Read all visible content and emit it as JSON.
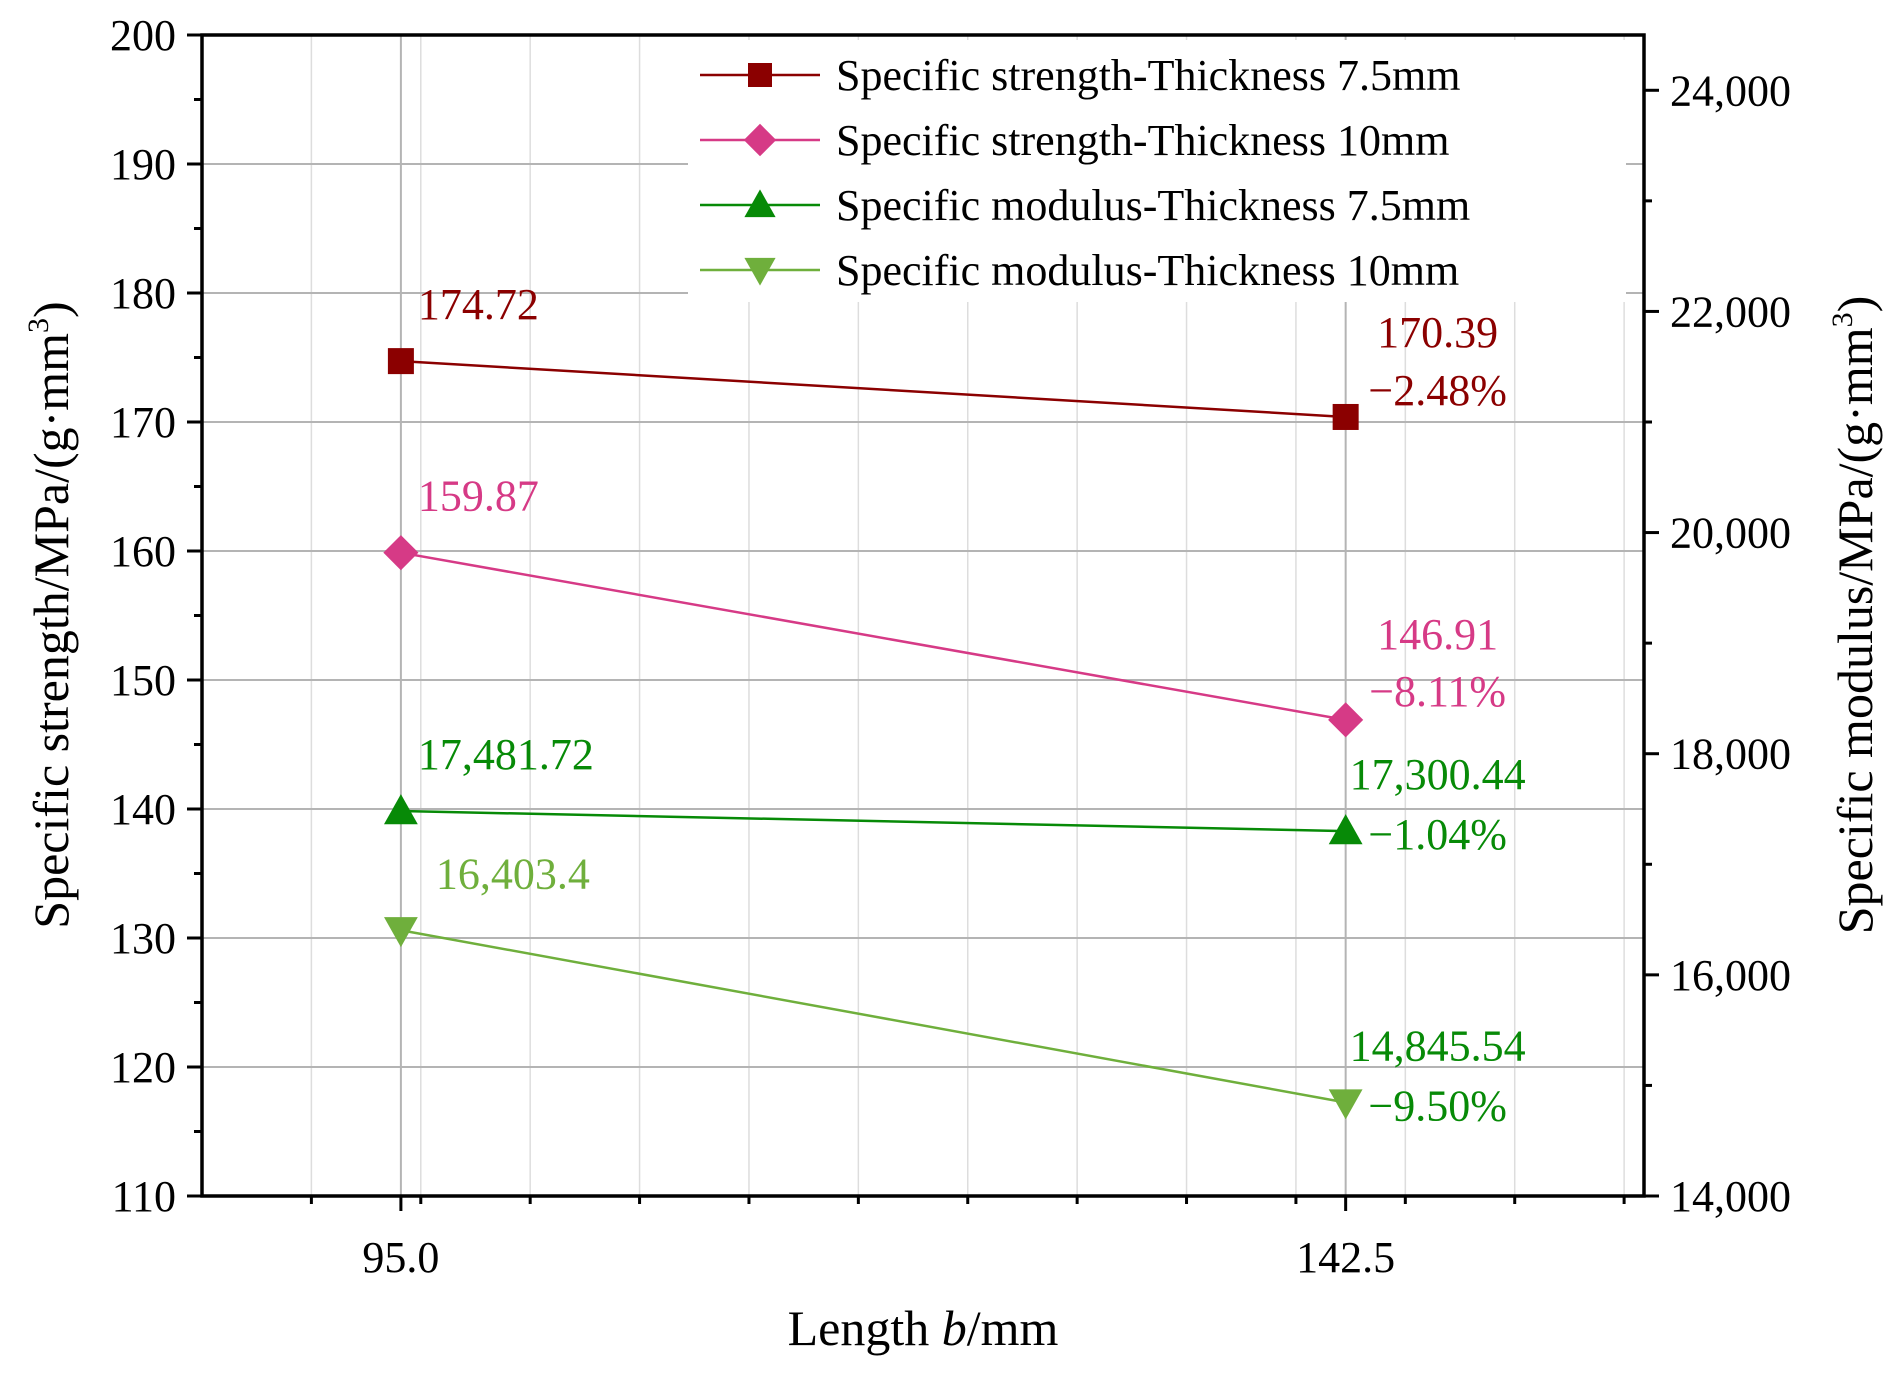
{
  "chart_data": {
    "type": "line",
    "x_ticks": [
      "95.0",
      "142.5"
    ],
    "x": [
      95.0,
      142.5
    ],
    "xlim": [
      85.0,
      157.5
    ],
    "xlabel_pre": "Length ",
    "xlabel_var": "b",
    "xlabel_post": "/mm",
    "ylabel_left": "Specific strength/MPa/(g·mm",
    "ylabel_right": "Specific modulus/MPa/(g·mm",
    "ylabel_sup": "3",
    "ylabel_close": ")",
    "ylim_left": [
      110,
      200
    ],
    "ylim_right": [
      14000,
      24500
    ],
    "yticks_left": [
      "110",
      "120",
      "130",
      "140",
      "150",
      "160",
      "170",
      "180",
      "190",
      "200"
    ],
    "yticks_right": [
      "14,000",
      "16,000",
      "18,000",
      "20,000",
      "22,000",
      "24,000"
    ],
    "series": [
      {
        "name": "Specific strength-Thickness 7.5mm",
        "axis": "left",
        "marker": "square",
        "color": "#8B0000",
        "values": [
          174.72,
          170.39
        ],
        "labels": [
          "174.72",
          "170.39"
        ],
        "change": "−2.48%"
      },
      {
        "name": "Specific strength-Thickness 10mm",
        "axis": "left",
        "marker": "diamond",
        "color": "#D63A86",
        "values": [
          159.87,
          146.91
        ],
        "labels": [
          "159.87",
          "146.91"
        ],
        "change": "−8.11%"
      },
      {
        "name": "Specific modulus-Thickness 7.5mm",
        "axis": "right",
        "marker": "triangle-up",
        "color": "#078A07",
        "values": [
          17481.72,
          17300.44
        ],
        "labels": [
          "17,481.72",
          "17,300.44"
        ],
        "change": "−1.04%"
      },
      {
        "name": "Specific modulus-Thickness 10mm",
        "axis": "right",
        "marker": "triangle-down",
        "color": "#6FAF3C",
        "values": [
          16403.4,
          14845.54
        ],
        "labels": [
          "16,403.4",
          "14,845.54"
        ],
        "change": "−9.50%",
        "label_color_end": "#078A07"
      }
    ],
    "grid": true,
    "legend_position": "top-right"
  }
}
